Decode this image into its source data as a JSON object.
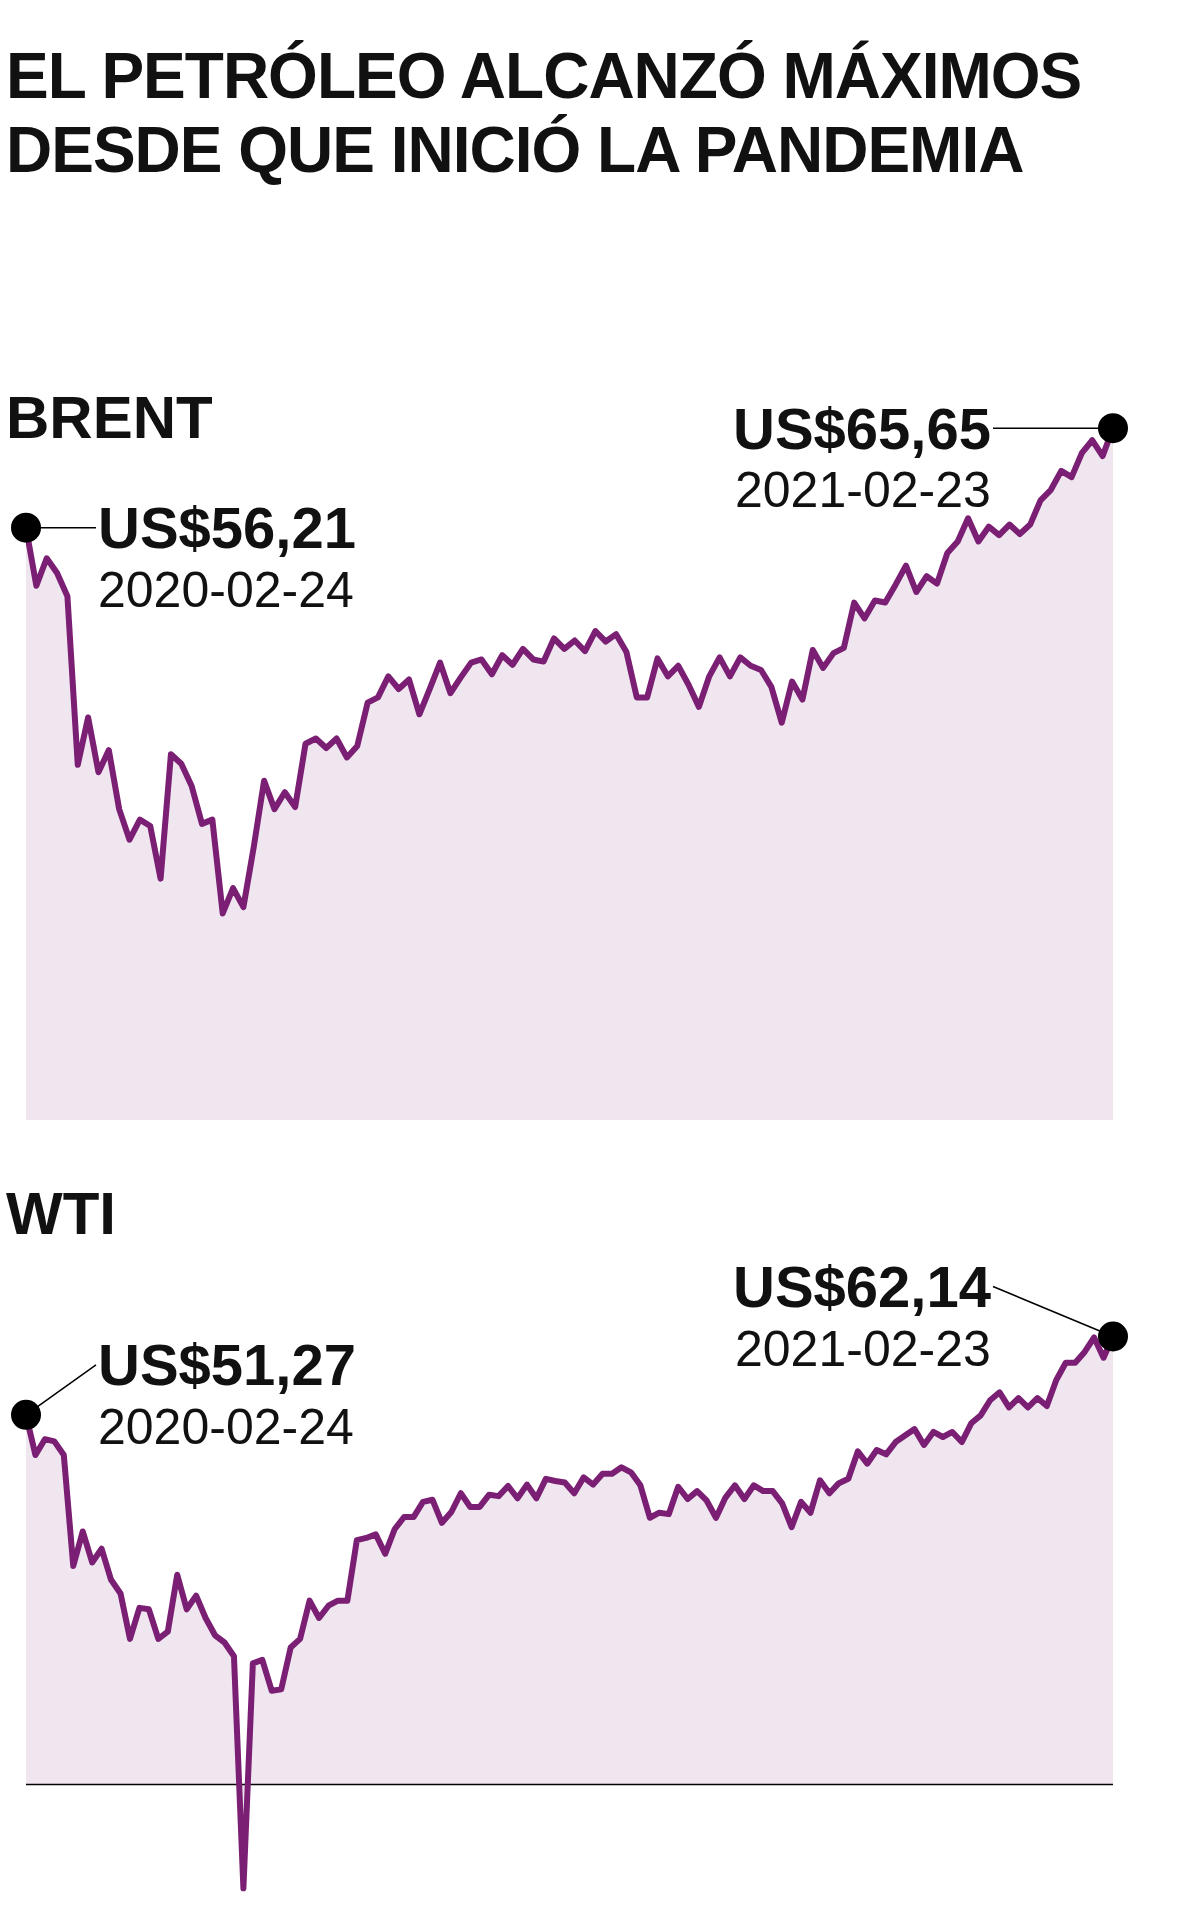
{
  "chart_data": [
    {
      "type": "area",
      "title": "EL PETRÓLEO ALCANZÓ MÁXIMOS DESDE QUE INICIÓ LA PANDEMIA",
      "subtitle": "BRENT",
      "categories": [
        null,
        null,
        null,
        null,
        null,
        null,
        null,
        null,
        null,
        null,
        null,
        null,
        null,
        null,
        null,
        null,
        null,
        null,
        null,
        null,
        null,
        null,
        null,
        null,
        null,
        null,
        null,
        null,
        null,
        null,
        null,
        null,
        null,
        null,
        null,
        null,
        null,
        null,
        null,
        null,
        null,
        null,
        null,
        null,
        null,
        null,
        null,
        null,
        null,
        null,
        null,
        null,
        null,
        null,
        null,
        null,
        null,
        null,
        null,
        null,
        null,
        null,
        null,
        null,
        null,
        null,
        null,
        null,
        null,
        null,
        null,
        null,
        null,
        null,
        null,
        null,
        null,
        null,
        null,
        null,
        null,
        null,
        null,
        null,
        null,
        null,
        null,
        null,
        null,
        null,
        null,
        null,
        null,
        null,
        null,
        null,
        null,
        null,
        null,
        null,
        null,
        null,
        null,
        null,
        null,
        null
      ],
      "series": [
        {
          "color": "#7a1f73",
          "values": [
            56.21,
            50.7,
            53.3,
            51.9,
            49.7,
            33.7,
            38.2,
            33.0,
            35.1,
            29.5,
            26.6,
            28.5,
            27.9,
            22.9,
            34.7,
            33.8,
            31.7,
            28.1,
            28.5,
            19.6,
            22.0,
            20.2,
            25.9,
            32.2,
            29.5,
            31.1,
            29.7,
            35.7,
            36.2,
            35.3,
            36.2,
            34.4,
            35.5,
            39.6,
            40.1,
            42.1,
            40.9,
            41.8,
            38.5,
            40.9,
            43.4,
            40.5,
            42.0,
            43.4,
            43.7,
            42.3,
            44.1,
            43.2,
            44.7,
            43.7,
            43.5,
            45.7,
            44.7,
            45.5,
            44.5,
            46.4,
            45.4,
            46.1,
            44.4,
            40.1,
            40.1,
            43.8,
            42.1,
            43.1,
            41.3,
            39.2,
            42.1,
            43.9,
            42.1,
            43.9,
            43.1,
            42.7,
            41.1,
            37.7,
            41.6,
            39.9,
            44.6,
            42.9,
            44.3,
            44.8,
            49.1,
            47.6,
            49.3,
            49.1,
            50.8,
            52.6,
            50.1,
            51.6,
            50.9,
            53.8,
            54.9,
            57.1,
            54.9,
            56.3,
            55.5,
            56.5,
            55.6,
            56.5,
            58.8,
            59.8,
            61.6,
            61.0,
            63.3,
            64.5,
            63.0,
            65.65
          ],
          "value_labels": [
            "US$56,21\n2020-02-24",
            null,
            null,
            null,
            null,
            null,
            null,
            null,
            null,
            null,
            null,
            null,
            null,
            null,
            null,
            null,
            null,
            null,
            null,
            null,
            null,
            null,
            null,
            null,
            null,
            null,
            null,
            null,
            null,
            null,
            null,
            null,
            null,
            null,
            null,
            null,
            null,
            null,
            null,
            null,
            null,
            null,
            null,
            null,
            null,
            null,
            null,
            null,
            null,
            null,
            null,
            null,
            null,
            null,
            null,
            null,
            null,
            null,
            null,
            null,
            null,
            null,
            null,
            null,
            null,
            null,
            null,
            null,
            null,
            null,
            null,
            null,
            null,
            null,
            null,
            null,
            null,
            null,
            null,
            null,
            null,
            null,
            null,
            null,
            null,
            null,
            null,
            null,
            null,
            null,
            null,
            null,
            null,
            null,
            null,
            null,
            null,
            null,
            null,
            null,
            null,
            null,
            null,
            null,
            null,
            "US$65,65\n2021-02-23"
          ]
        }
      ]
    },
    {
      "type": "area",
      "title": "WTI",
      "categories": [
        null,
        null,
        null,
        null,
        null,
        null,
        null,
        null,
        null,
        null,
        null,
        null,
        null,
        null,
        null,
        null,
        null,
        null,
        null,
        null,
        null,
        null,
        null,
        null,
        null,
        null,
        null,
        null,
        null,
        null,
        null,
        null,
        null,
        null,
        null,
        null,
        null,
        null,
        null,
        null,
        null,
        null,
        null,
        null,
        null,
        null,
        null,
        null,
        null,
        null,
        null,
        null,
        null,
        null,
        null,
        null,
        null,
        null,
        null,
        null,
        null,
        null,
        null,
        null,
        null,
        null,
        null,
        null,
        null,
        null,
        null,
        null,
        null,
        null,
        null,
        null,
        null,
        null,
        null,
        null,
        null,
        null,
        null,
        null,
        null,
        null,
        null,
        null,
        null,
        null,
        null,
        null,
        null,
        null,
        null,
        null,
        null,
        null,
        null,
        null,
        null,
        null,
        null,
        null,
        null,
        null,
        null,
        null,
        null,
        null,
        null,
        null,
        null,
        null,
        null,
        null
      ],
      "series": [
        {
          "color": "#7a1f73",
          "values": [
            51.27,
            45.7,
            47.9,
            47.6,
            45.7,
            30.3,
            35.1,
            30.8,
            32.7,
            28.4,
            26.5,
            20.2,
            24.5,
            24.3,
            20.2,
            21.2,
            29.1,
            24.3,
            26.2,
            23.1,
            20.7,
            19.7,
            17.8,
            -14.4,
            16.8,
            17.3,
            13.0,
            13.2,
            19.0,
            20.2,
            25.5,
            23.1,
            24.8,
            25.5,
            25.5,
            33.9,
            34.2,
            34.7,
            32.0,
            35.4,
            37.1,
            37.1,
            39.2,
            39.5,
            36.3,
            37.8,
            40.4,
            38.5,
            38.5,
            40.2,
            40.0,
            41.4,
            39.7,
            41.6,
            39.7,
            42.4,
            42.1,
            41.9,
            40.4,
            42.6,
            41.6,
            43.1,
            43.1,
            44.0,
            43.3,
            41.5,
            37.0,
            37.7,
            37.5,
            41.3,
            39.6,
            40.7,
            39.4,
            37.0,
            39.8,
            41.5,
            39.6,
            41.5,
            40.7,
            40.7,
            39.0,
            35.7,
            39.2,
            37.7,
            42.2,
            40.4,
            41.8,
            42.4,
            46.2,
            44.5,
            46.4,
            45.8,
            47.5,
            48.4,
            49.3,
            47.1,
            48.9,
            48.2,
            48.9,
            47.5,
            50.1,
            51.2,
            53.3,
            54.4,
            52.3,
            53.6,
            52.3,
            53.6,
            52.5,
            56.1,
            58.5,
            58.5,
            60.0,
            62.0,
            59.2,
            62.14
          ],
          "value_labels": [
            "US$51,27\n2020-02-24",
            null,
            null,
            null,
            null,
            null,
            null,
            null,
            null,
            null,
            null,
            null,
            null,
            null,
            null,
            null,
            null,
            null,
            null,
            null,
            null,
            null,
            null,
            null,
            null,
            null,
            null,
            null,
            null,
            null,
            null,
            null,
            null,
            null,
            null,
            null,
            null,
            null,
            null,
            null,
            null,
            null,
            null,
            null,
            null,
            null,
            null,
            null,
            null,
            null,
            null,
            null,
            null,
            null,
            null,
            null,
            null,
            null,
            null,
            null,
            null,
            null,
            null,
            null,
            null,
            null,
            null,
            null,
            null,
            null,
            null,
            null,
            null,
            null,
            null,
            null,
            null,
            null,
            null,
            null,
            null,
            null,
            null,
            null,
            null,
            null,
            null,
            null,
            null,
            null,
            null,
            null,
            null,
            null,
            null,
            null,
            null,
            null,
            null,
            null,
            null,
            null,
            null,
            null,
            null,
            null,
            null,
            null,
            null,
            null,
            null,
            null,
            null,
            null,
            null,
            "US$62,14\n2021-02-23"
          ]
        }
      ],
      "ref_lines": [
        {
          "axis": "y",
          "value": 0,
          "color": "#000000"
        }
      ]
    }
  ]
}
